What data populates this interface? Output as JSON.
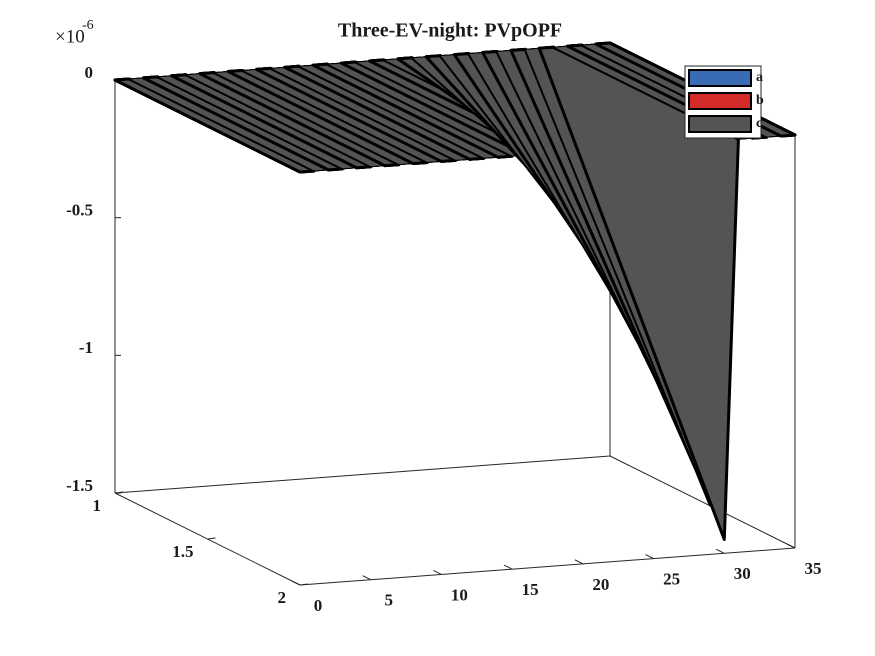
{
  "chart_data": {
    "type": "surface3d",
    "title": "Three-EV-night: PVpOPF",
    "z_multiplier": {
      "base": "×10",
      "exponent": "-6"
    },
    "x": [
      0,
      1,
      2,
      3,
      4,
      5,
      6,
      7,
      8,
      9,
      10,
      11,
      12,
      13,
      14,
      15,
      16,
      17,
      18,
      19,
      20,
      21,
      22,
      23,
      24,
      25,
      26,
      27,
      28,
      29,
      30,
      31,
      32,
      33,
      34,
      35
    ],
    "series": [
      {
        "name": "a",
        "color": "#3a6cb5",
        "values": [
          0,
          0,
          0,
          0,
          0,
          0,
          0,
          0,
          0,
          0,
          0,
          0,
          0,
          0,
          0,
          0,
          0,
          0,
          0,
          0,
          0,
          0,
          0,
          0,
          0,
          0,
          0,
          0,
          0,
          0,
          0,
          0,
          0,
          0,
          0,
          0
        ]
      },
      {
        "name": "b",
        "color": "#d42b2b",
        "values": [
          0,
          0,
          0,
          0,
          0,
          0,
          0,
          0,
          0,
          0,
          0,
          0,
          0,
          0,
          0,
          0,
          0,
          0,
          0,
          0,
          0,
          0,
          0,
          0,
          0,
          0,
          0,
          0,
          0,
          0,
          0,
          0,
          0,
          0,
          0,
          0
        ]
      },
      {
        "name": "c",
        "color": "#545356",
        "values": [
          0,
          0,
          0,
          0,
          0,
          0,
          0,
          0,
          0,
          0,
          0,
          0,
          0,
          0,
          0,
          0,
          0,
          0,
          0,
          0,
          -0.13,
          -0.26,
          -0.4,
          -0.53,
          -0.66,
          -0.79,
          -0.92,
          -1.05,
          -1.19,
          -1.32,
          -1.45,
          0,
          0,
          0,
          0,
          0
        ]
      }
    ],
    "xlim": [
      0,
      35
    ],
    "xticks": [
      0,
      5,
      10,
      15,
      20,
      25,
      30,
      35
    ],
    "ylim": [
      1,
      2
    ],
    "yticks": [
      1,
      1.5,
      2
    ],
    "zlim": [
      -1.5,
      0
    ],
    "zticks": [
      -1.5,
      -1,
      -0.5,
      0
    ],
    "legend": "upper right"
  }
}
